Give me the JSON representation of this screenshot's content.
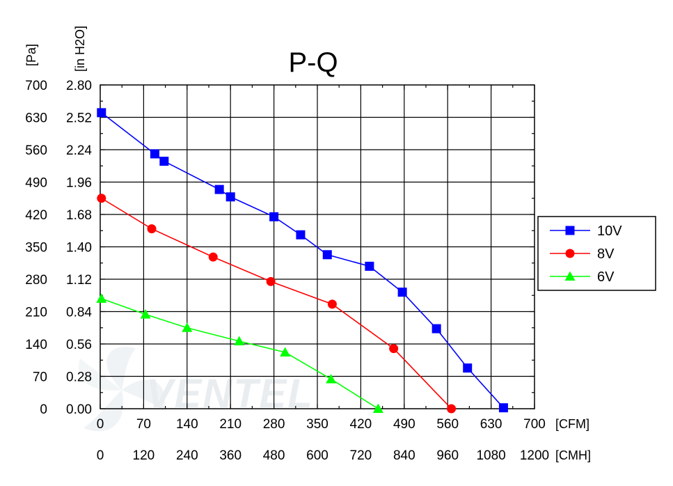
{
  "chart_data": {
    "type": "line",
    "title": "P-Q",
    "left_units": [
      "[Pa]",
      "[in H2O]"
    ],
    "bottom_units": [
      "[CFM]",
      "[CMH]"
    ],
    "y_ticks_pa": [
      700,
      630,
      560,
      490,
      420,
      350,
      280,
      210,
      140,
      70,
      0
    ],
    "y_ticks_inh2o": [
      "2.80",
      "2.52",
      "2.24",
      "1.96",
      "1.68",
      "1.40",
      "1.12",
      "0.84",
      "0.56",
      "0.28",
      "0.00"
    ],
    "x_ticks_cfm": [
      0,
      70,
      140,
      210,
      280,
      350,
      420,
      490,
      560,
      630,
      700
    ],
    "x_ticks_cmh": [
      0,
      120,
      240,
      360,
      480,
      600,
      720,
      840,
      960,
      1080,
      1200
    ],
    "xlim": [
      0,
      700
    ],
    "ylim": [
      0,
      700
    ],
    "grid": true,
    "legend_position": "right",
    "watermark": "VENTEL",
    "series": [
      {
        "name": "10V",
        "color": "#0000ff",
        "marker": "square",
        "x": [
          2,
          88,
          103,
          192,
          210,
          280,
          323,
          366,
          434,
          487,
          542,
          592,
          650
        ],
        "y": [
          640,
          551,
          535,
          474,
          458,
          415,
          376,
          333,
          308,
          252,
          173,
          88,
          2
        ]
      },
      {
        "name": "8V",
        "color": "#ff0000",
        "marker": "circle",
        "x": [
          2,
          83,
          182,
          275,
          374,
          473,
          566
        ],
        "y": [
          455,
          389,
          328,
          275,
          226,
          130,
          0
        ]
      },
      {
        "name": "6V",
        "color": "#00ff00",
        "marker": "triangle",
        "x": [
          2,
          73,
          140,
          224,
          298,
          372,
          448
        ],
        "y": [
          238,
          204,
          175,
          146,
          122,
          64,
          0
        ]
      }
    ]
  }
}
